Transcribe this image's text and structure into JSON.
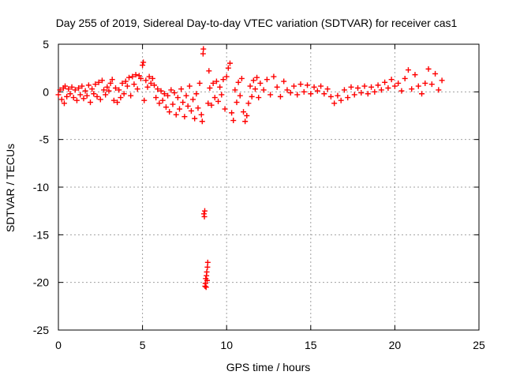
{
  "chart_data": {
    "type": "scatter",
    "title": "Day 255 of 2019, Sidereal Day-to-day VTEC variation (SDTVAR) for receiver cas1",
    "xlabel": "GPS time / hours",
    "ylabel": "SDTVAR / TECUs",
    "xlim": [
      0,
      25
    ],
    "ylim": [
      -25,
      5
    ],
    "x_ticks": [
      0,
      5,
      10,
      15,
      20,
      25
    ],
    "y_ticks": [
      -25,
      -20,
      -15,
      -10,
      -5,
      0,
      5
    ],
    "x_tick_labels": [
      "0",
      "5",
      "10",
      "15",
      "20",
      "25"
    ],
    "y_tick_labels": [
      "-25",
      "-20",
      "-15",
      "-10",
      "-5",
      "0",
      "5"
    ],
    "grid": true,
    "marker": "+",
    "series": [
      {
        "name": "SDTVAR",
        "color": "#ff0000",
        "points": [
          [
            0.0,
            -0.3
          ],
          [
            0.1,
            0.2
          ],
          [
            0.2,
            -0.8
          ],
          [
            0.3,
            0.4
          ],
          [
            0.35,
            -1.2
          ],
          [
            0.4,
            0.6
          ],
          [
            0.5,
            -0.5
          ],
          [
            0.6,
            0.3
          ],
          [
            0.7,
            -0.2
          ],
          [
            0.8,
            0.5
          ],
          [
            0.9,
            -0.6
          ],
          [
            1.0,
            0.2
          ],
          [
            1.1,
            -0.9
          ],
          [
            1.2,
            0.4
          ],
          [
            1.3,
            -0.3
          ],
          [
            1.4,
            0.6
          ],
          [
            1.5,
            -0.7
          ],
          [
            1.6,
            0.1
          ],
          [
            1.7,
            -0.4
          ],
          [
            1.8,
            0.7
          ],
          [
            1.9,
            -1.1
          ],
          [
            2.0,
            0.3
          ],
          [
            2.1,
            -0.2
          ],
          [
            2.2,
            0.8
          ],
          [
            2.3,
            -0.5
          ],
          [
            2.4,
            1.0
          ],
          [
            2.5,
            -0.8
          ],
          [
            2.6,
            1.2
          ],
          [
            2.7,
            0.2
          ],
          [
            2.8,
            -0.3
          ],
          [
            2.9,
            0.5
          ],
          [
            3.0,
            0.1
          ],
          [
            3.1,
            0.9
          ],
          [
            3.2,
            1.3
          ],
          [
            3.3,
            -0.9
          ],
          [
            3.4,
            0.4
          ],
          [
            3.5,
            -1.1
          ],
          [
            3.6,
            0.2
          ],
          [
            3.7,
            -0.6
          ],
          [
            3.8,
            0.9
          ],
          [
            3.9,
            -0.2
          ],
          [
            4.0,
            1.1
          ],
          [
            4.1,
            0.6
          ],
          [
            4.2,
            1.5
          ],
          [
            4.3,
            -0.4
          ],
          [
            4.4,
            1.6
          ],
          [
            4.5,
            0.8
          ],
          [
            4.6,
            1.8
          ],
          [
            4.7,
            0.3
          ],
          [
            4.8,
            1.7
          ],
          [
            4.9,
            1.4
          ],
          [
            5.0,
            2.8
          ],
          [
            5.05,
            3.1
          ],
          [
            5.1,
            -0.9
          ],
          [
            5.2,
            1.2
          ],
          [
            5.3,
            0.5
          ],
          [
            5.4,
            1.6
          ],
          [
            5.5,
            0.9
          ],
          [
            5.6,
            1.4
          ],
          [
            5.7,
            0.7
          ],
          [
            5.8,
            -0.6
          ],
          [
            5.9,
            0.3
          ],
          [
            6.0,
            -1.2
          ],
          [
            6.1,
            0.1
          ],
          [
            6.2,
            -0.9
          ],
          [
            6.3,
            -0.2
          ],
          [
            6.4,
            -1.6
          ],
          [
            6.5,
            -0.4
          ],
          [
            6.6,
            -2.1
          ],
          [
            6.7,
            0.2
          ],
          [
            6.8,
            -1.3
          ],
          [
            6.9,
            -0.1
          ],
          [
            7.0,
            -2.4
          ],
          [
            7.1,
            -0.6
          ],
          [
            7.2,
            -1.8
          ],
          [
            7.3,
            0.3
          ],
          [
            7.4,
            -1.1
          ],
          [
            7.5,
            -2.6
          ],
          [
            7.6,
            -0.4
          ],
          [
            7.7,
            -1.5
          ],
          [
            7.8,
            0.6
          ],
          [
            7.9,
            -2.0
          ],
          [
            8.0,
            -0.8
          ],
          [
            8.1,
            -2.8
          ],
          [
            8.2,
            -0.2
          ],
          [
            8.3,
            -1.7
          ],
          [
            8.4,
            0.9
          ],
          [
            8.5,
            -2.4
          ],
          [
            8.55,
            -3.1
          ],
          [
            8.6,
            4.0
          ],
          [
            8.62,
            4.5
          ],
          [
            8.65,
            -12.8
          ],
          [
            8.68,
            -13.1
          ],
          [
            8.7,
            -12.5
          ],
          [
            8.72,
            -20.4
          ],
          [
            8.74,
            -20.1
          ],
          [
            8.76,
            -19.6
          ],
          [
            8.78,
            -20.5
          ],
          [
            8.8,
            -19.3
          ],
          [
            8.82,
            -18.9
          ],
          [
            8.84,
            -19.8
          ],
          [
            8.86,
            -18.4
          ],
          [
            8.88,
            -17.9
          ],
          [
            8.9,
            -1.2
          ],
          [
            8.95,
            2.2
          ],
          [
            9.0,
            0.4
          ],
          [
            9.1,
            -1.4
          ],
          [
            9.2,
            0.9
          ],
          [
            9.3,
            -0.6
          ],
          [
            9.4,
            1.1
          ],
          [
            9.5,
            -1.0
          ],
          [
            9.6,
            0.5
          ],
          [
            9.7,
            -0.3
          ],
          [
            9.8,
            1.3
          ],
          [
            9.9,
            -1.8
          ],
          [
            10.0,
            1.6
          ],
          [
            10.1,
            2.5
          ],
          [
            10.2,
            3.0
          ],
          [
            10.3,
            -2.2
          ],
          [
            10.4,
            -3.0
          ],
          [
            10.5,
            0.2
          ],
          [
            10.6,
            -1.1
          ],
          [
            10.7,
            1.0
          ],
          [
            10.8,
            -0.4
          ],
          [
            10.9,
            1.4
          ],
          [
            11.0,
            -2.1
          ],
          [
            11.1,
            -3.1
          ],
          [
            11.2,
            -2.5
          ],
          [
            11.3,
            -1.2
          ],
          [
            11.4,
            0.6
          ],
          [
            11.5,
            -0.5
          ],
          [
            11.6,
            1.2
          ],
          [
            11.7,
            0.3
          ],
          [
            11.8,
            1.5
          ],
          [
            11.9,
            -0.6
          ],
          [
            12.0,
            0.9
          ],
          [
            12.2,
            0.2
          ],
          [
            12.4,
            1.3
          ],
          [
            12.6,
            -0.3
          ],
          [
            12.8,
            1.6
          ],
          [
            13.0,
            0.5
          ],
          [
            13.2,
            -0.5
          ],
          [
            13.4,
            1.1
          ],
          [
            13.6,
            0.2
          ],
          [
            13.8,
            -0.1
          ],
          [
            14.0,
            0.6
          ],
          [
            14.2,
            -0.3
          ],
          [
            14.4,
            0.8
          ],
          [
            14.6,
            0.0
          ],
          [
            14.8,
            0.7
          ],
          [
            15.0,
            -0.2
          ],
          [
            15.2,
            0.5
          ],
          [
            15.4,
            0.1
          ],
          [
            15.6,
            0.6
          ],
          [
            15.8,
            -0.2
          ],
          [
            16.0,
            0.3
          ],
          [
            16.2,
            -0.5
          ],
          [
            16.4,
            -1.2
          ],
          [
            16.6,
            -0.4
          ],
          [
            16.8,
            -0.9
          ],
          [
            17.0,
            0.2
          ],
          [
            17.2,
            -0.6
          ],
          [
            17.4,
            0.5
          ],
          [
            17.6,
            -0.3
          ],
          [
            17.8,
            0.4
          ],
          [
            18.0,
            -0.1
          ],
          [
            18.2,
            0.6
          ],
          [
            18.4,
            -0.2
          ],
          [
            18.6,
            0.5
          ],
          [
            18.8,
            0.0
          ],
          [
            19.0,
            0.7
          ],
          [
            19.2,
            0.2
          ],
          [
            19.4,
            1.0
          ],
          [
            19.6,
            0.4
          ],
          [
            19.8,
            1.3
          ],
          [
            20.0,
            0.6
          ],
          [
            20.2,
            0.9
          ],
          [
            20.4,
            0.1
          ],
          [
            20.6,
            1.4
          ],
          [
            20.8,
            2.3
          ],
          [
            21.0,
            0.3
          ],
          [
            21.2,
            1.8
          ],
          [
            21.4,
            0.6
          ],
          [
            21.6,
            -0.2
          ],
          [
            21.8,
            0.9
          ],
          [
            22.0,
            2.4
          ],
          [
            22.2,
            0.8
          ],
          [
            22.4,
            1.9
          ],
          [
            22.6,
            0.2
          ],
          [
            22.8,
            1.2
          ]
        ]
      }
    ]
  }
}
